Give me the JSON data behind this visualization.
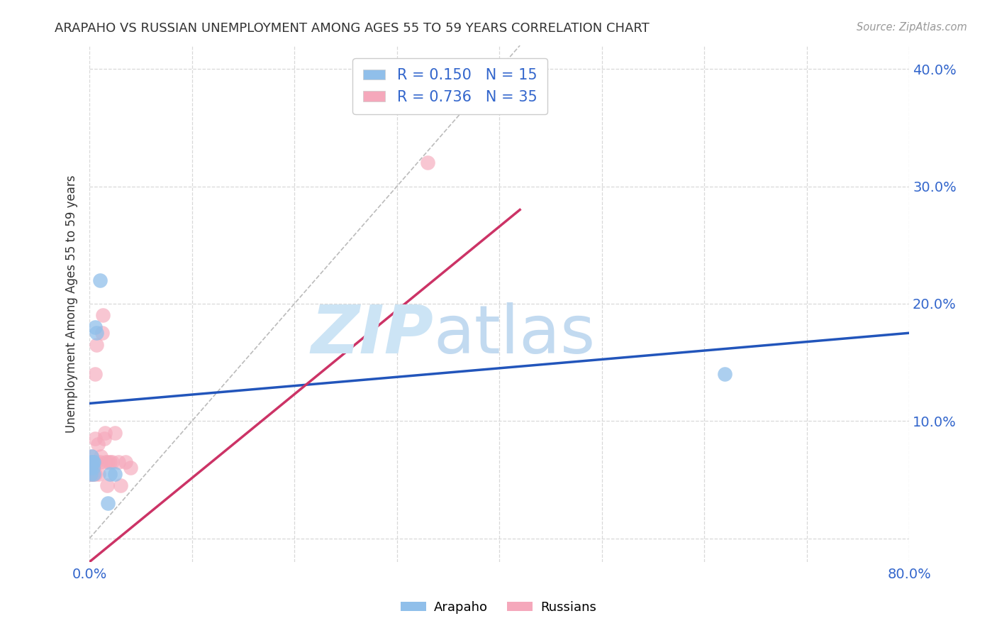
{
  "title": "ARAPAHO VS RUSSIAN UNEMPLOYMENT AMONG AGES 55 TO 59 YEARS CORRELATION CHART",
  "source": "Source: ZipAtlas.com",
  "ylabel": "Unemployment Among Ages 55 to 59 years",
  "xlabel": "",
  "xlim": [
    0.0,
    0.8
  ],
  "ylim": [
    -0.02,
    0.42
  ],
  "xticks": [
    0.0,
    0.1,
    0.2,
    0.3,
    0.4,
    0.5,
    0.6,
    0.7,
    0.8
  ],
  "yticks": [
    0.0,
    0.1,
    0.2,
    0.3,
    0.4
  ],
  "arapaho_color": "#90bfea",
  "russian_color": "#f5a8bb",
  "arapaho_line_color": "#2255bb",
  "russian_line_color": "#cc3366",
  "diagonal_color": "#bbbbbb",
  "r_arapaho": 0.15,
  "n_arapaho": 15,
  "r_russian": 0.736,
  "n_russian": 35,
  "arapaho_x": [
    0.001,
    0.001,
    0.002,
    0.002,
    0.003,
    0.003,
    0.004,
    0.004,
    0.005,
    0.007,
    0.01,
    0.02,
    0.025,
    0.62,
    0.018
  ],
  "arapaho_y": [
    0.055,
    0.06,
    0.07,
    0.065,
    0.06,
    0.065,
    0.055,
    0.065,
    0.18,
    0.175,
    0.22,
    0.055,
    0.055,
    0.14,
    0.03
  ],
  "russian_x": [
    0.001,
    0.001,
    0.001,
    0.002,
    0.002,
    0.002,
    0.003,
    0.003,
    0.003,
    0.004,
    0.004,
    0.005,
    0.005,
    0.005,
    0.006,
    0.007,
    0.008,
    0.009,
    0.01,
    0.011,
    0.012,
    0.013,
    0.014,
    0.015,
    0.016,
    0.017,
    0.018,
    0.02,
    0.022,
    0.025,
    0.028,
    0.03,
    0.035,
    0.04,
    0.33
  ],
  "russian_y": [
    0.055,
    0.06,
    0.065,
    0.055,
    0.06,
    0.07,
    0.055,
    0.06,
    0.065,
    0.06,
    0.065,
    0.055,
    0.085,
    0.14,
    0.065,
    0.165,
    0.08,
    0.055,
    0.065,
    0.07,
    0.175,
    0.19,
    0.085,
    0.09,
    0.065,
    0.045,
    0.065,
    0.065,
    0.065,
    0.09,
    0.065,
    0.045,
    0.065,
    0.06,
    0.32
  ],
  "arapaho_line_x": [
    0.0,
    0.8
  ],
  "arapaho_line_y": [
    0.115,
    0.175
  ],
  "russian_line_x": [
    0.0,
    0.42
  ],
  "russian_line_y": [
    -0.02,
    0.28
  ],
  "watermark_zip": "ZIP",
  "watermark_atlas": "atlas",
  "watermark_color": "#cce4f5",
  "grid_color": "#d8d8d8",
  "background_color": "#ffffff",
  "legend_label_1": "R = 0.150   N = 15",
  "legend_label_2": "R = 0.736   N = 35",
  "legend_text_color": "#3366cc",
  "bottom_legend_labels": [
    "Arapaho",
    "Russians"
  ]
}
